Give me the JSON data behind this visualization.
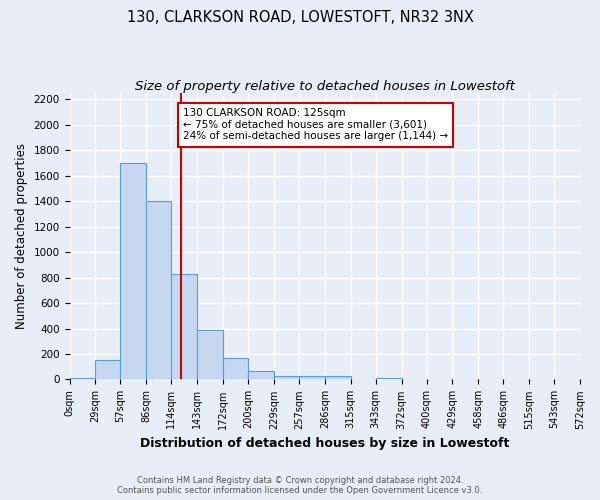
{
  "title": "130, CLARKSON ROAD, LOWESTOFT, NR32 3NX",
  "subtitle": "Size of property relative to detached houses in Lowestoft",
  "xlabel": "Distribution of detached houses by size in Lowestoft",
  "ylabel": "Number of detached properties",
  "bin_edges": [
    0,
    29,
    57,
    86,
    114,
    143,
    172,
    200,
    229,
    257,
    286,
    315,
    343,
    372,
    400,
    429,
    458,
    486,
    515,
    543,
    572
  ],
  "bar_heights": [
    15,
    155,
    1700,
    1400,
    830,
    390,
    165,
    65,
    30,
    25,
    25,
    0,
    15,
    0,
    0,
    0,
    0,
    0,
    0,
    0
  ],
  "bar_color": "#c5d8f0",
  "bar_edge_color": "#5a9fd4",
  "vline_x": 125,
  "vline_color": "#cc0000",
  "annotation_text": "130 CLARKSON ROAD: 125sqm\n← 75% of detached houses are smaller (3,601)\n24% of semi-detached houses are larger (1,144) →",
  "annotation_box_color": "#ffffff",
  "annotation_box_edge_color": "#cc0000",
  "ylim": [
    0,
    2250
  ],
  "yticks": [
    0,
    200,
    400,
    600,
    800,
    1000,
    1200,
    1400,
    1600,
    1800,
    2000,
    2200
  ],
  "tick_labels": [
    "0sqm",
    "29sqm",
    "57sqm",
    "86sqm",
    "114sqm",
    "143sqm",
    "172sqm",
    "200sqm",
    "229sqm",
    "257sqm",
    "286sqm",
    "315sqm",
    "343sqm",
    "372sqm",
    "400sqm",
    "429sqm",
    "458sqm",
    "486sqm",
    "515sqm",
    "543sqm",
    "572sqm"
  ],
  "footer_line1": "Contains HM Land Registry data © Crown copyright and database right 2024.",
  "footer_line2": "Contains public sector information licensed under the Open Government Licence v3.0.",
  "bg_color": "#e8eef8",
  "grid_color": "#ffffff",
  "title_fontsize": 10.5,
  "subtitle_fontsize": 9.5,
  "axis_label_fontsize": 8.5,
  "tick_fontsize": 7,
  "footer_fontsize": 6,
  "annot_fontsize": 7.5
}
